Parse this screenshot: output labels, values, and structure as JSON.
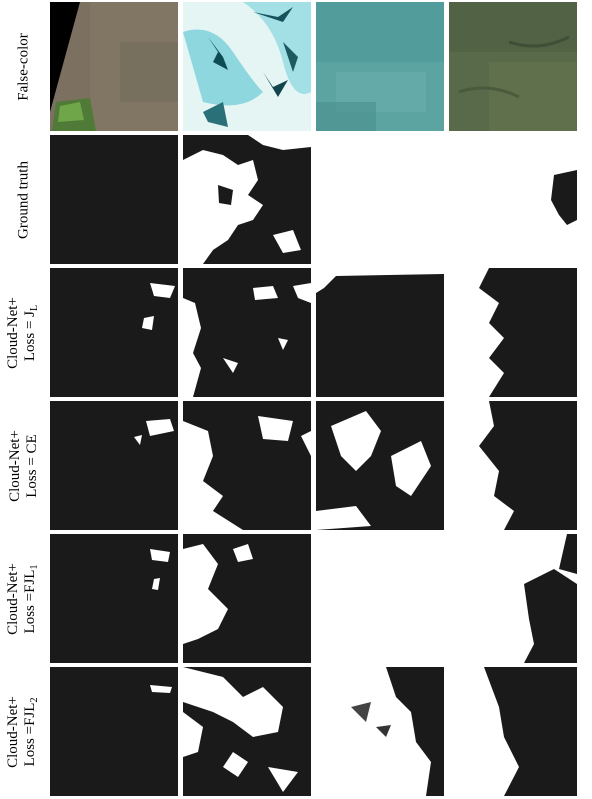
{
  "rows": [
    {
      "line1": "False-color",
      "line2": "",
      "sub": ""
    },
    {
      "line1": "Ground truth",
      "line2": "",
      "sub": ""
    },
    {
      "line1": "Cloud-Net+",
      "line2": "Loss = J",
      "sub": "L"
    },
    {
      "line1": "Cloud-Net+",
      "line2": "Loss = CE",
      "sub": ""
    },
    {
      "line1": "Cloud-Net+",
      "line2": "Loss =FJL",
      "sub": "1"
    },
    {
      "line1": "Cloud-Net+",
      "line2": "Loss =FJL",
      "sub": "2"
    }
  ]
}
